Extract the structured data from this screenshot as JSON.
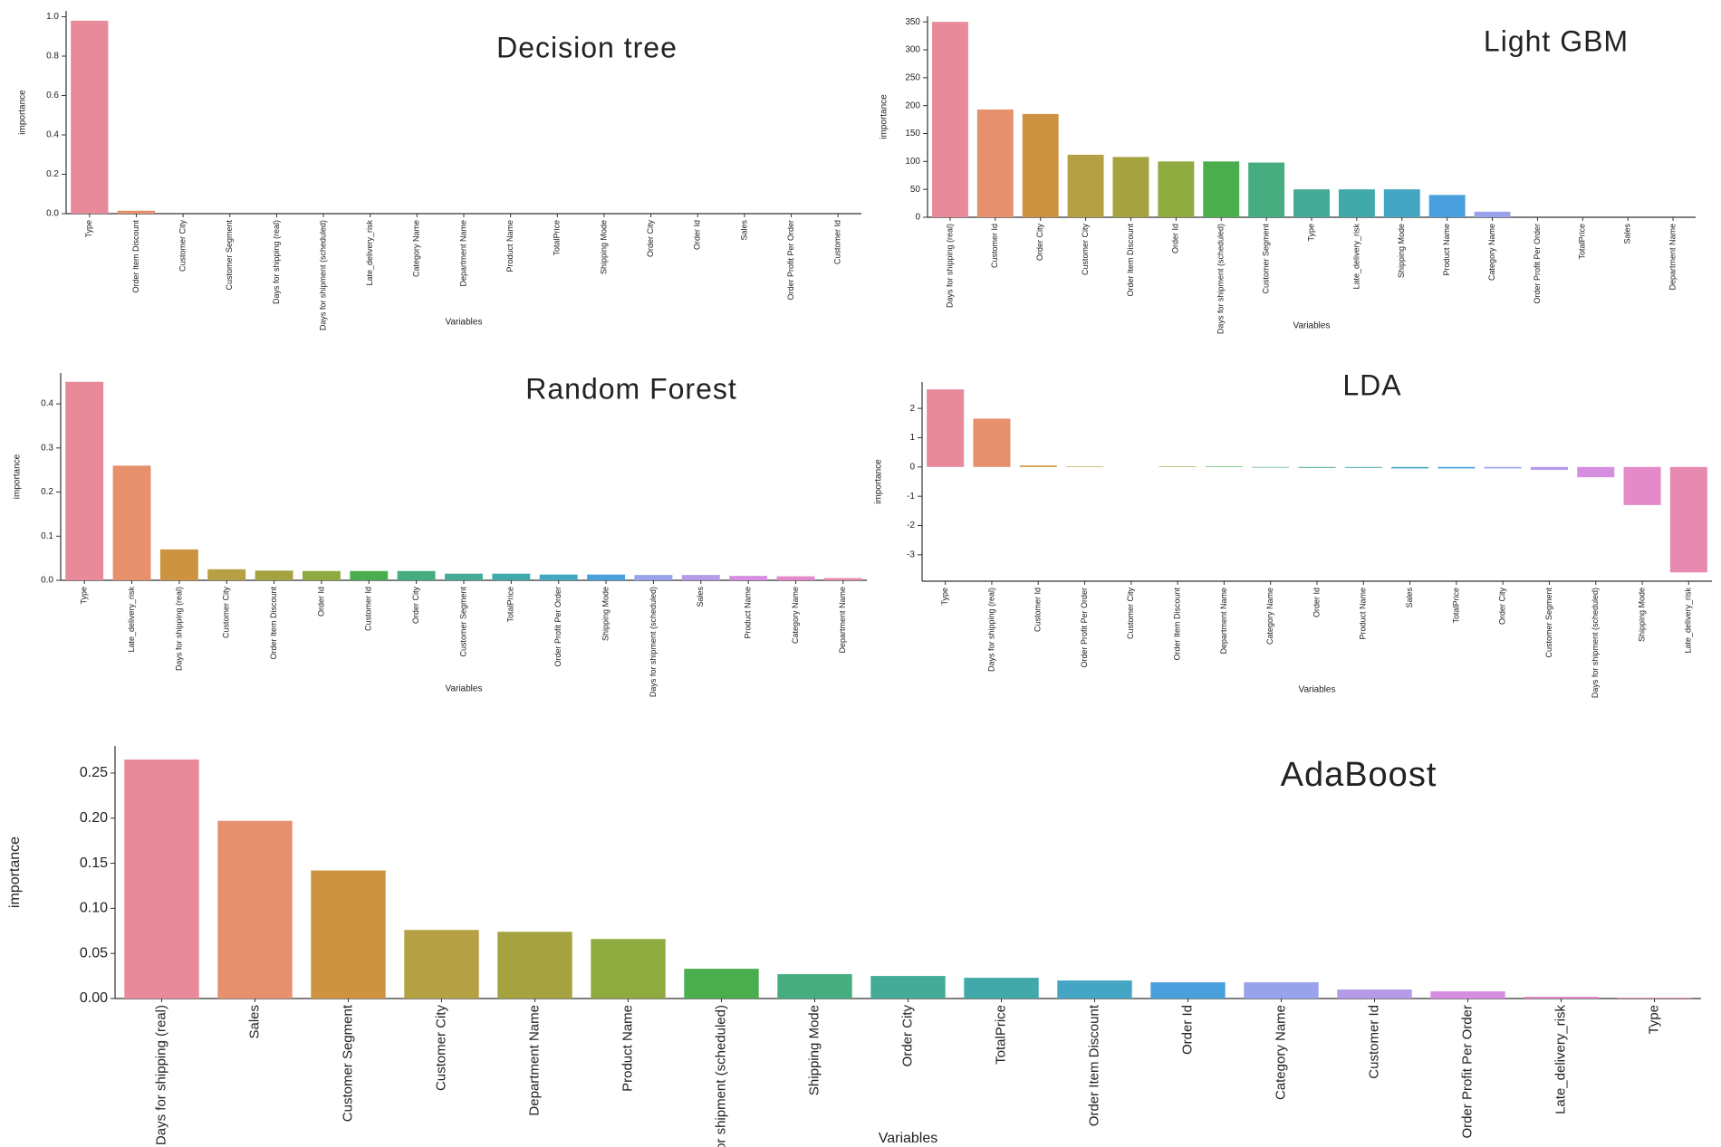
{
  "chart_data": [
    {
      "type": "bar",
      "title": "Decision tree",
      "xlabel": "Variables",
      "ylabel": "importance",
      "categories": [
        "Type",
        "Order Item Discount",
        "Customer City",
        "Customer Segment",
        "Days for shipping (real)",
        "Days for shipment (scheduled)",
        "Late_delivery_risk",
        "Category Name",
        "Department Name",
        "Product Name",
        "TotalPrice",
        "Shipping Mode",
        "Order City",
        "Order Id",
        "Sales",
        "Order Profit Per Order",
        "Customer Id"
      ],
      "values": [
        0.98,
        0.015,
        0,
        0,
        0,
        0,
        0,
        0,
        0,
        0,
        0,
        0,
        0,
        0,
        0,
        0,
        0
      ],
      "colors": [
        "#e88a9a",
        "#e6906e",
        "#cd9341",
        "#b5a044",
        "#a5a340",
        "#8fab3f",
        "#4aae4f",
        "#45ad80",
        "#43ab96",
        "#41a9aa",
        "#44a6c3",
        "#4aa0dd",
        "#99a3ec",
        "#b49ae8",
        "#d68fe0",
        "#e48ac9",
        "#e88ab0"
      ],
      "ylim": [
        0,
        1.03
      ],
      "yticks": [
        {
          "value": 0,
          "label": "0.0"
        },
        0.2,
        0.4,
        0.6,
        0.8,
        {
          "value": 1,
          "label": "1.0"
        }
      ]
    },
    {
      "type": "bar",
      "title": "Light GBM",
      "xlabel": "Variables",
      "ylabel": "importance",
      "categories": [
        "Days for shipping (real)",
        "Customer Id",
        "Order City",
        "Customer City",
        "Order Item Discount",
        "Order Id",
        "Days for shipment (scheduled)",
        "Customer Segment",
        "Type",
        "Late_delivery_risk",
        "Shipping Mode",
        "Product Name",
        "Category Name",
        "Order Profit Per Order",
        "TotalPrice",
        "Sales",
        "Department Name"
      ],
      "values": [
        350,
        193,
        185,
        112,
        108,
        100,
        100,
        98,
        50,
        50,
        50,
        40,
        10,
        0,
        0,
        0,
        0
      ],
      "colors": [
        "#e88a9a",
        "#e6906e",
        "#cd9341",
        "#b5a044",
        "#a5a340",
        "#8fab3f",
        "#4aae4f",
        "#45ad80",
        "#43ab96",
        "#41a9aa",
        "#44a6c3",
        "#4aa0dd",
        "#99a3ec",
        "#b49ae8",
        "#d68fe0",
        "#e48ac9",
        "#e88ab0"
      ],
      "ylim": [
        0,
        360
      ],
      "yticks": [
        0,
        50,
        100,
        150,
        200,
        250,
        300,
        350
      ]
    },
    {
      "type": "bar",
      "title": "Random Forest",
      "xlabel": "Variables",
      "ylabel": "importance",
      "categories": [
        "Type",
        "Late_delivery_risk",
        "Days for shipping (real)",
        "Customer City",
        "Order Item Discount",
        "Order Id",
        "Customer Id",
        "Order City",
        "Customer Segment",
        "TotalPrice",
        "Order Profit Per Order",
        "Shipping Mode",
        "Days for shipment (scheduled)",
        "Sales",
        "Product Name",
        "Category Name",
        "Department Name"
      ],
      "values": [
        0.45,
        0.26,
        0.07,
        0.025,
        0.022,
        0.021,
        0.021,
        0.021,
        0.015,
        0.015,
        0.013,
        0.013,
        0.012,
        0.012,
        0.01,
        0.009,
        0.005
      ],
      "colors": [
        "#e88a9a",
        "#e6906e",
        "#cd9341",
        "#b5a044",
        "#a5a340",
        "#8fab3f",
        "#4aae4f",
        "#45ad80",
        "#43ab96",
        "#41a9aa",
        "#44a6c3",
        "#4aa0dd",
        "#99a3ec",
        "#b49ae8",
        "#d68fe0",
        "#e48ac9",
        "#e88ab0"
      ],
      "ylim": [
        0,
        0.47
      ],
      "yticks": [
        {
          "value": 0,
          "label": "0.0"
        },
        0.1,
        0.2,
        0.3,
        0.4
      ]
    },
    {
      "type": "bar",
      "title": "LDA",
      "xlabel": "Variables",
      "ylabel": "importance",
      "categories": [
        "Type",
        "Days for shipping (real)",
        "Customer Id",
        "Order Profit Per Order",
        "Customer City",
        "Order Item Discount",
        "Department Name",
        "Category Name",
        "Order Id",
        "Product Name",
        "Sales",
        "TotalPrice",
        "Order City",
        "Customer Segment",
        "Days for shipment (scheduled)",
        "Shipping Mode",
        "Late_delivery_risk"
      ],
      "values": [
        2.65,
        1.65,
        0.05,
        0.02,
        0,
        0.02,
        0.02,
        -0.02,
        -0.03,
        -0.03,
        -0.05,
        -0.05,
        -0.05,
        -0.1,
        -0.35,
        -1.3,
        -3.6
      ],
      "colors": [
        "#e88a9a",
        "#e6906e",
        "#cd9341",
        "#b5a044",
        "#a5a340",
        "#8fab3f",
        "#4aae4f",
        "#45ad80",
        "#43ab96",
        "#41a9aa",
        "#44a6c3",
        "#4aa0dd",
        "#99a3ec",
        "#b49ae8",
        "#d68fe0",
        "#e48ac9",
        "#e88ab0"
      ],
      "ylim": [
        -3.9,
        2.9
      ],
      "yticks": [
        -3,
        -2,
        -1,
        0,
        1,
        2
      ]
    },
    {
      "type": "bar",
      "title": "AdaBoost",
      "xlabel": "Variables",
      "ylabel": "importance",
      "categories": [
        "Days for shipping (real)",
        "Sales",
        "Customer Segment",
        "Customer City",
        "Department Name",
        "Product Name",
        "Days for shipment (scheduled)",
        "Shipping Mode",
        "Order City",
        "TotalPrice",
        "Order Item Discount",
        "Order Id",
        "Category Name",
        "Customer Id",
        "Order Profit Per Order",
        "Late_delivery_risk",
        "Type"
      ],
      "values": [
        0.265,
        0.197,
        0.142,
        0.076,
        0.074,
        0.066,
        0.033,
        0.027,
        0.025,
        0.023,
        0.02,
        0.018,
        0.018,
        0.01,
        0.008,
        0.002,
        0.001
      ],
      "colors": [
        "#e88a9a",
        "#e6906e",
        "#cd9341",
        "#b5a044",
        "#a5a340",
        "#8fab3f",
        "#4aae4f",
        "#45ad80",
        "#43ab96",
        "#41a9aa",
        "#44a6c3",
        "#4aa0dd",
        "#99a3ec",
        "#b49ae8",
        "#d68fe0",
        "#e48ac9",
        "#e88ab0"
      ],
      "ylim": [
        0,
        0.28
      ],
      "yticks": [
        {
          "value": 0,
          "label": "0.00"
        },
        0.05,
        {
          "value": 0.1,
          "label": "0.10"
        },
        0.15,
        {
          "value": 0.2,
          "label": "0.20"
        },
        0.25
      ]
    }
  ]
}
